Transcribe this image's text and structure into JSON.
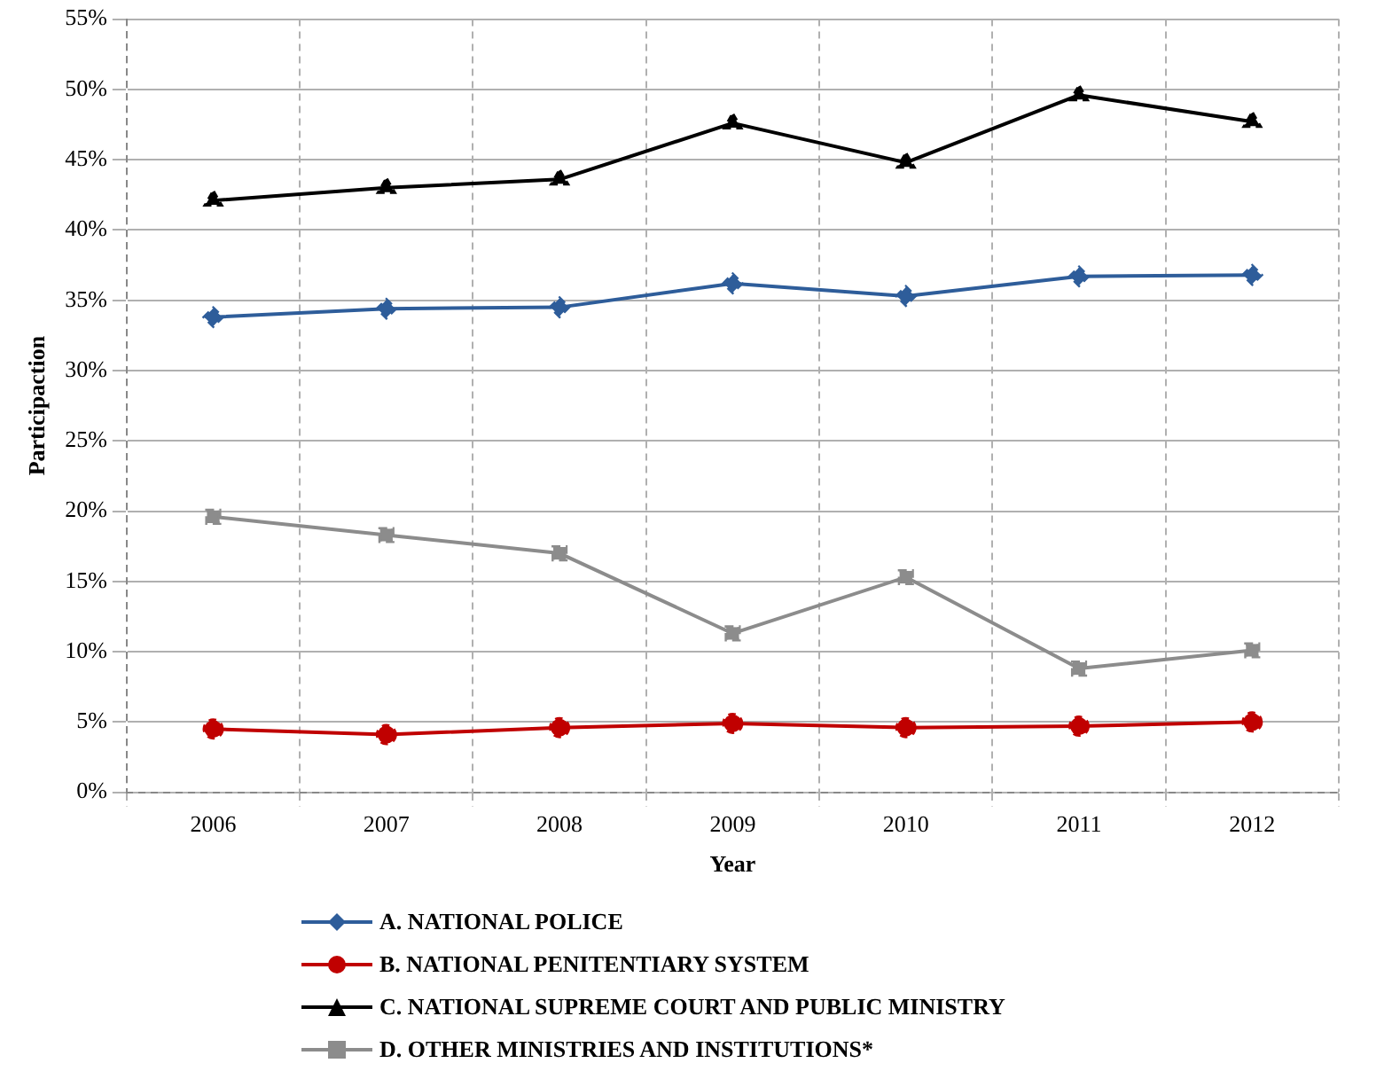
{
  "chart_data": {
    "type": "line",
    "xlabel": "Year",
    "ylabel": "Participaction",
    "categories": [
      "2006",
      "2007",
      "2008",
      "2009",
      "2010",
      "2011",
      "2012"
    ],
    "ylim": [
      0,
      0.55
    ],
    "yticks": [
      {
        "value": 0,
        "label": "0%"
      },
      {
        "value": 0.05,
        "label": "5%"
      },
      {
        "value": 0.1,
        "label": "10%"
      },
      {
        "value": 0.15,
        "label": "15%"
      },
      {
        "value": 0.2,
        "label": "20%"
      },
      {
        "value": 0.25,
        "label": "25%"
      },
      {
        "value": 0.3,
        "label": "30%"
      },
      {
        "value": 0.35,
        "label": "35%"
      },
      {
        "value": 0.4,
        "label": "40%"
      },
      {
        "value": 0.45,
        "label": "45%"
      },
      {
        "value": 0.5,
        "label": "50%"
      },
      {
        "value": 0.55,
        "label": "55%"
      }
    ],
    "grid": true,
    "legend": "bottom",
    "line_style": "solid",
    "series": [
      {
        "name": "A. NATIONAL POLICE",
        "color": "#2e5d9a",
        "marker": "diamond",
        "values": [
          0.338,
          0.344,
          0.345,
          0.362,
          0.353,
          0.367,
          0.368
        ]
      },
      {
        "name": "B. NATIONAL PENITENTIARY SYSTEM",
        "color": "#c00000",
        "marker": "circle",
        "values": [
          0.045,
          0.041,
          0.046,
          0.049,
          0.046,
          0.047,
          0.05
        ]
      },
      {
        "name": "C. NATIONAL SUPREME COURT AND PUBLIC MINISTRY",
        "color": "#000000",
        "marker": "triangle",
        "values": [
          0.421,
          0.43,
          0.436,
          0.476,
          0.448,
          0.496,
          0.477
        ]
      },
      {
        "name": "D. OTHER MINISTRIES AND INSTITUTIONS*",
        "color": "#8c8c8c",
        "marker": "square",
        "values": [
          0.196,
          0.183,
          0.17,
          0.113,
          0.153,
          0.088,
          0.101
        ]
      }
    ]
  }
}
